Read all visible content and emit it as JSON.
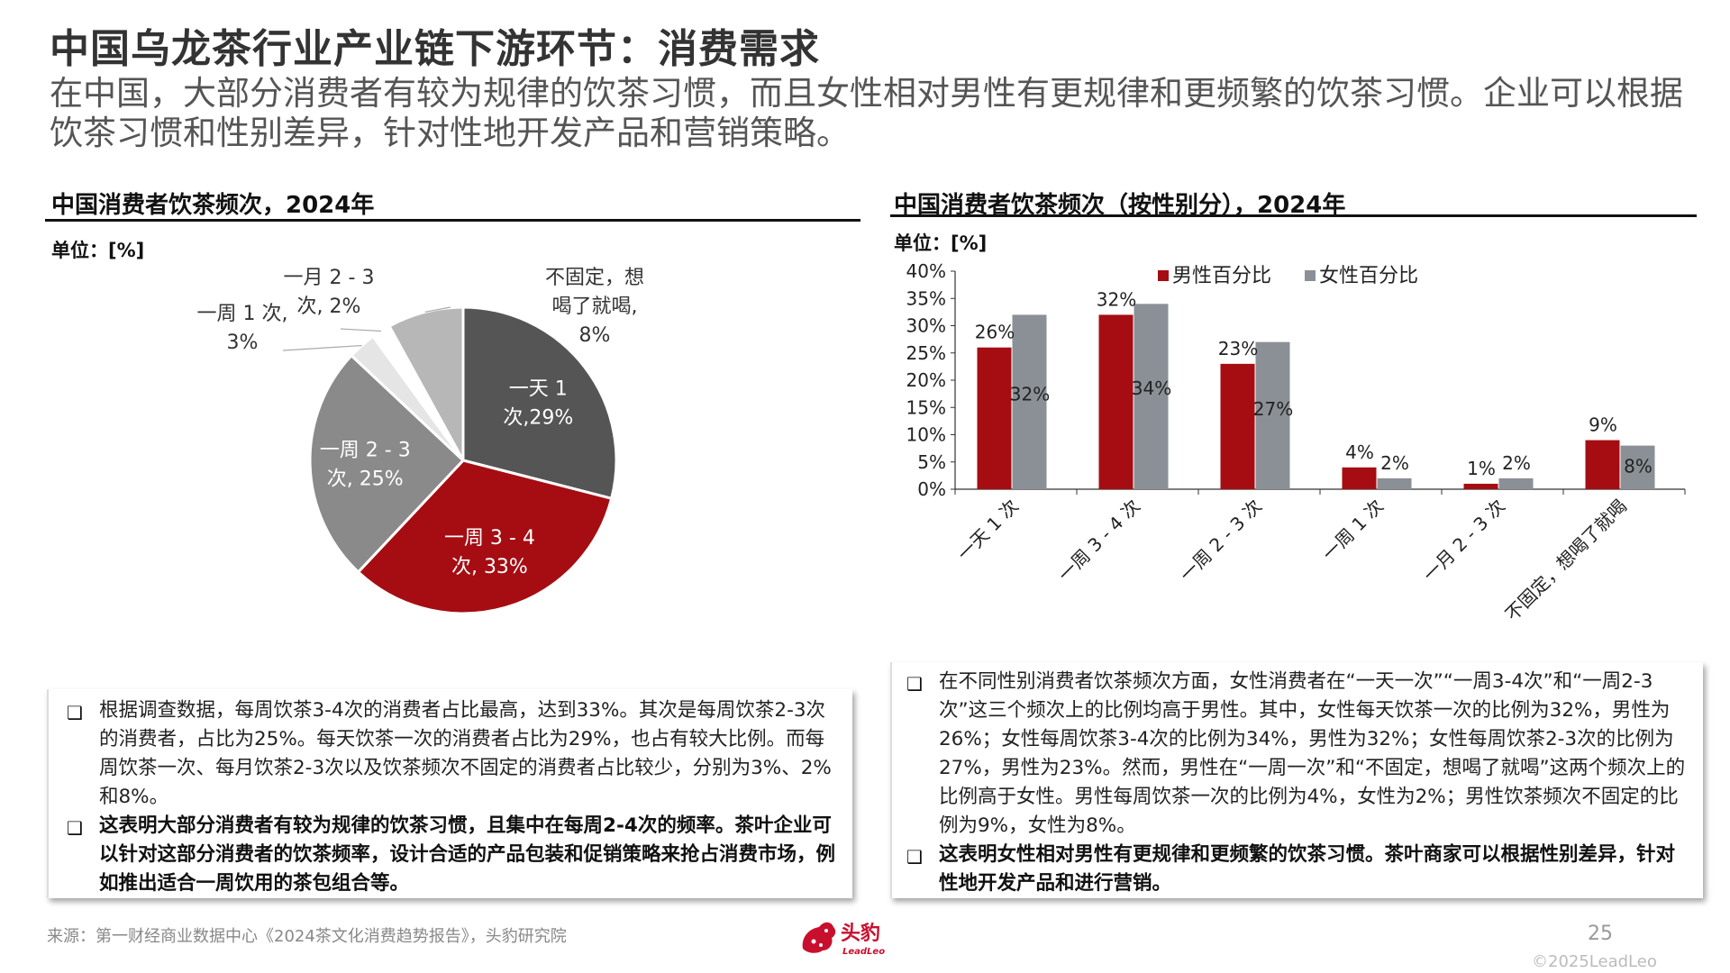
{
  "page": {
    "title": "中国乌龙茶行业产业链下游环节：消费需求",
    "subtitle": "在中国，大部分消费者有较为规律的饮茶习惯，而且女性相对男性有更规律和更频繁的饮茶习惯。企业可以根据饮茶习惯和性别差异，针对性地开发产品和营销策略。",
    "source": "来源：第一财经商业数据中心《2024茶文化消费趋势报告》，头豹研究院",
    "page_number": "25",
    "copyright": "©2025LeadLeo",
    "logo_text": "头豹",
    "logo_sub": "LeadLeo"
  },
  "left": {
    "section_title": "中国消费者饮茶频次，2024年",
    "unit": "单位：[%]",
    "notes": [
      "根据调查数据，每周饮茶3-4次的消费者占比最高，达到33%。其次是每周饮茶2-3次的消费者，占比为25%。每天饮茶一次的消费者占比为29%，也占有较大比例。而每周饮茶一次、每月饮茶2-3次以及饮茶频次不固定的消费者占比较少，分别为3%、2%和8%。",
      "这表明大部分消费者有较为规律的饮茶习惯，且集中在每周2-4次的频率。茶叶企业可以针对这部分消费者的饮茶频率，设计合适的产品包装和促销策略来抢占消费市场，例如推出适合一周饮用的茶包组合等。"
    ]
  },
  "right": {
    "section_title": "中国消费者饮茶频次（按性别分），2024年",
    "unit": "单位：[%]",
    "notes": [
      "在不同性别消费者饮茶频次方面，女性消费者在“一天一次”“一周3-4次”和“一周2-3次”这三个频次上的比例均高于男性。其中，女性每天饮茶一次的比例为32%，男性为26%；女性每周饮茶3-4次的比例为34%，男性为32%；女性每周饮茶2-3次的比例为27%，男性为23%。然而，男性在“一周一次”和“不固定，想喝了就喝”这两个频次上的比例高于女性。男性每周饮茶一次的比例为4%，女性为2%；男性饮茶频次不固定的比例为9%，女性为8%。",
      "这表明女性相对男性有更规律和更频繁的饮茶习惯。茶叶商家可以根据性别差异，针对性地开发产品和进行营销。"
    ]
  },
  "chart_data": [
    {
      "type": "pie",
      "title": "中国消费者饮茶频次，2024年",
      "unit": "%",
      "slices": [
        {
          "label": "一天 1 次",
          "value": 29,
          "display": "一天 1\n次,29%",
          "color": "#555555"
        },
        {
          "label": "一周 3 - 4 次",
          "value": 33,
          "display": "一周 3 - 4\n次, 33%",
          "color": "#a50d12"
        },
        {
          "label": "一周 2 - 3 次",
          "value": 25,
          "display": "一周 2 - 3\n次, 25%",
          "color": "#8a8a8a"
        },
        {
          "label": "一周 1 次",
          "value": 3,
          "display": "一周 1 次,\n3%",
          "color": "#e5e5e5"
        },
        {
          "label": "一月 2 - 3 次",
          "value": 2,
          "display": "一月 2 - 3\n次, 2%",
          "color": "#ffffff"
        },
        {
          "label": "不固定，想喝了就喝",
          "value": 8,
          "display": "不固定，想\n喝了就喝,\n8%",
          "color": "#b7b7b7"
        }
      ]
    },
    {
      "type": "bar",
      "title": "中国消费者饮茶频次（按性别分），2024年",
      "categories": [
        "一天 1 次",
        "一周 3 - 4 次",
        "一周 2 - 3 次",
        "一周 1 次",
        "一月 2 - 3 次",
        "不固定，想喝了就喝"
      ],
      "series": [
        {
          "name": "男性百分比",
          "values": [
            26,
            32,
            23,
            4,
            1,
            9
          ],
          "color": "#a50d12"
        },
        {
          "name": "女性百分比",
          "values": [
            32,
            34,
            27,
            2,
            2,
            8
          ],
          "color": "#8a9096"
        }
      ],
      "ylim": [
        0,
        40
      ],
      "yticks": [
        "0%",
        "5%",
        "10%",
        "15%",
        "20%",
        "25%",
        "30%",
        "35%",
        "40%"
      ],
      "legend": "top"
    }
  ]
}
